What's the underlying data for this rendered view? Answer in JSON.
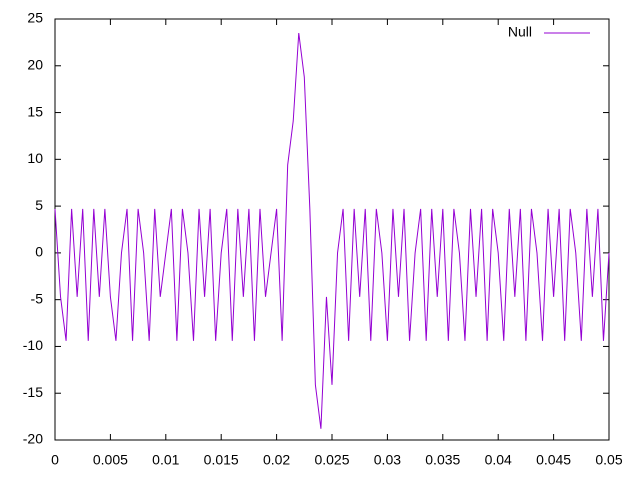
{
  "chart_data": {
    "type": "line",
    "x": [
      0,
      0.0005,
      0.001,
      0.0015,
      0.002,
      0.0025,
      0.003,
      0.0035,
      0.004,
      0.0045,
      0.005,
      0.0055,
      0.006,
      0.0065,
      0.007,
      0.0075,
      0.008,
      0.0085,
      0.009,
      0.0095,
      0.01,
      0.0105,
      0.011,
      0.0115,
      0.012,
      0.0125,
      0.013,
      0.0135,
      0.014,
      0.0145,
      0.015,
      0.0155,
      0.016,
      0.0165,
      0.017,
      0.0175,
      0.018,
      0.0185,
      0.019,
      0.0195,
      0.02,
      0.0205,
      0.021,
      0.0215,
      0.022,
      0.0225,
      0.023,
      0.0235,
      0.024,
      0.0245,
      0.025,
      0.0255,
      0.026,
      0.0265,
      0.027,
      0.0275,
      0.028,
      0.0285,
      0.029,
      0.0295,
      0.03,
      0.0305,
      0.031,
      0.0315,
      0.032,
      0.0325,
      0.033,
      0.0335,
      0.034,
      0.0345,
      0.035,
      0.0355,
      0.036,
      0.0365,
      0.037,
      0.0375,
      0.038,
      0.0385,
      0.039,
      0.0395,
      0.04,
      0.0405,
      0.041,
      0.0415,
      0.042,
      0.0425,
      0.043,
      0.0435,
      0.044,
      0.0445,
      0.045,
      0.0455,
      0.046,
      0.0465,
      0.047,
      0.0475,
      0.048,
      0.0485,
      0.049,
      0.0495,
      0.05
    ],
    "series": [
      {
        "name": "Null",
        "color": "#9400d3",
        "values": [
          4.7,
          -4.7,
          -9.4,
          4.7,
          -4.7,
          4.7,
          -9.4,
          4.7,
          -4.7,
          4.7,
          -4.7,
          -9.4,
          0,
          4.7,
          -9.4,
          4.7,
          0,
          -9.4,
          4.7,
          -4.7,
          0,
          4.7,
          -9.4,
          4.7,
          0,
          -9.4,
          4.7,
          -4.7,
          4.7,
          -9.4,
          0,
          4.7,
          -9.4,
          4.7,
          -4.7,
          4.7,
          -9.4,
          4.7,
          -4.7,
          0,
          4.7,
          -9.4,
          9.4,
          14.1,
          23.5,
          18.8,
          4.7,
          -14.1,
          -18.8,
          -4.7,
          -14.1,
          0,
          4.7,
          -9.4,
          4.7,
          -4.7,
          4.7,
          -9.4,
          4.7,
          0,
          -9.4,
          4.7,
          -4.7,
          4.7,
          -9.4,
          0,
          4.7,
          -9.4,
          4.7,
          -4.7,
          4.7,
          -9.4,
          4.7,
          0,
          -9.4,
          4.7,
          -4.7,
          4.7,
          -9.4,
          4.7,
          0,
          -9.4,
          4.7,
          -4.7,
          4.7,
          -9.4,
          4.7,
          0,
          -9.4,
          4.7,
          -4.7,
          4.7,
          -9.4,
          4.7,
          0,
          -9.4,
          4.7,
          -4.7,
          4.7,
          -9.4,
          0
        ]
      }
    ],
    "xlim": [
      0,
      0.05
    ],
    "xticks": [
      0,
      0.005,
      0.01,
      0.015,
      0.02,
      0.025,
      0.03,
      0.035,
      0.04,
      0.045,
      0.05
    ],
    "ylim": [
      -20,
      25
    ],
    "yticks": [
      -20,
      -15,
      -10,
      -5,
      0,
      5,
      10,
      15,
      20,
      25
    ],
    "legend": "top-right"
  }
}
